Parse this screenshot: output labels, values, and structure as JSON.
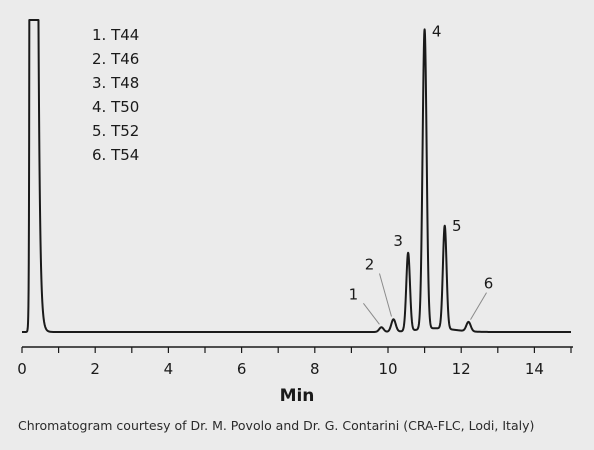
{
  "chart_data": {
    "type": "line",
    "xlabel": "Min",
    "ylabel": "",
    "xlim": [
      0,
      15
    ],
    "xticks": [
      0,
      2,
      4,
      6,
      8,
      10,
      12,
      14
    ],
    "xtick_labels": [
      "0",
      "2",
      "4",
      "6",
      "8",
      "10",
      "12",
      "14"
    ],
    "minor_xtick_step": 1,
    "ylim": [
      0,
      100
    ],
    "grid": false,
    "line_color": "#1a1a1a",
    "legend": {
      "placement": "top-left",
      "entries": [
        "1.  T44",
        "2.  T46",
        "3.  T48",
        "4.  T50",
        "5.  T52",
        "6.  T54"
      ]
    },
    "solvent_front": {
      "start": 0.2,
      "end": 0.45,
      "height": 100
    },
    "peaks": [
      {
        "label": "1",
        "time": 9.82,
        "height": 1.5
      },
      {
        "label": "2",
        "time": 10.15,
        "height": 4
      },
      {
        "label": "3",
        "time": 10.55,
        "height": 25
      },
      {
        "label": "4",
        "time": 11.0,
        "height": 96
      },
      {
        "label": "5",
        "time": 11.55,
        "height": 33
      },
      {
        "label": "6",
        "time": 12.2,
        "height": 3
      }
    ]
  },
  "caption": "Chromatogram courtesy of Dr. M. Povolo and Dr. G. Contarini (CRA-FLC, Lodi, Italy)"
}
